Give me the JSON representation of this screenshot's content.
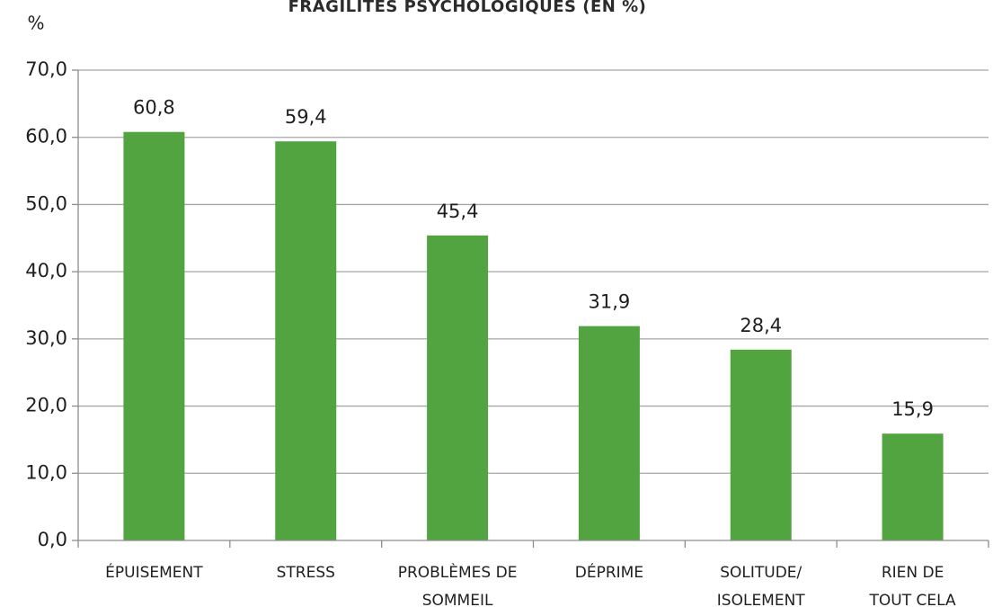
{
  "chart_data": {
    "type": "bar",
    "title": "FRAGILITÉS PSYCHOLOGIQUES (EN %)",
    "ylabel": "%",
    "xlabel": "",
    "ylim": [
      0,
      70
    ],
    "yticks": [
      "0,0",
      "10,0",
      "20,0",
      "30,0",
      "40,0",
      "50,0",
      "60,0",
      "70,0"
    ],
    "categories": [
      [
        "ÉPUISEMENT"
      ],
      [
        "STRESS"
      ],
      [
        "PROBLÈMES DE",
        "SOMMEIL"
      ],
      [
        "DÉPRIME"
      ],
      [
        "SOLITUDE/",
        "ISOLEMENT"
      ],
      [
        "RIEN DE",
        "TOUT CELA"
      ]
    ],
    "values": [
      60.8,
      59.4,
      45.4,
      31.9,
      28.4,
      15.9
    ],
    "data_labels": [
      "60,8",
      "59,4",
      "45,4",
      "31,9",
      "28,4",
      "15,9"
    ],
    "bar_color": "#52a440",
    "grid": true,
    "legend": "none"
  }
}
